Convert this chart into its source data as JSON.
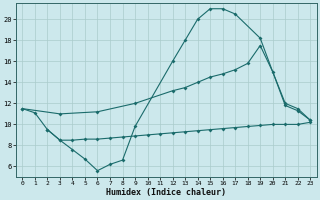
{
  "xlabel": "Humidex (Indice chaleur)",
  "bg_color": "#cce8ec",
  "grid_color": "#aacccc",
  "line_color": "#1a6b6b",
  "xlim": [
    -0.5,
    23.5
  ],
  "ylim": [
    5.0,
    21.5
  ],
  "yticks": [
    6,
    8,
    10,
    12,
    14,
    16,
    18,
    20
  ],
  "xticks": [
    0,
    1,
    2,
    3,
    4,
    5,
    6,
    7,
    8,
    9,
    10,
    11,
    12,
    13,
    14,
    15,
    16,
    17,
    18,
    19,
    20,
    21,
    22,
    23
  ],
  "line1_x": [
    0,
    1,
    2,
    3,
    4,
    5,
    6,
    7,
    8,
    9,
    12,
    13,
    14,
    15,
    16,
    17,
    19,
    21,
    22,
    23
  ],
  "line1_y": [
    11.5,
    11.1,
    9.5,
    8.5,
    7.6,
    6.7,
    5.6,
    6.2,
    6.6,
    9.8,
    16.0,
    18.0,
    20.0,
    21.0,
    21.0,
    20.5,
    18.2,
    11.8,
    11.3,
    10.4
  ],
  "line2_x": [
    0,
    3,
    6,
    9,
    12,
    13,
    14,
    15,
    16,
    17,
    18,
    19,
    20,
    21,
    22,
    23
  ],
  "line2_y": [
    11.5,
    11.0,
    11.2,
    12.0,
    13.2,
    13.5,
    14.0,
    14.5,
    14.8,
    15.2,
    15.8,
    17.5,
    15.0,
    12.0,
    11.5,
    10.4
  ],
  "line3_x": [
    2,
    3,
    4,
    5,
    6,
    7,
    8,
    9,
    10,
    11,
    12,
    13,
    14,
    15,
    16,
    17,
    18,
    19,
    20,
    21,
    22,
    23
  ],
  "line3_y": [
    9.5,
    8.5,
    8.5,
    8.6,
    8.6,
    8.7,
    8.8,
    8.9,
    9.0,
    9.1,
    9.2,
    9.3,
    9.4,
    9.5,
    9.6,
    9.7,
    9.8,
    9.9,
    10.0,
    10.0,
    10.0,
    10.2
  ]
}
